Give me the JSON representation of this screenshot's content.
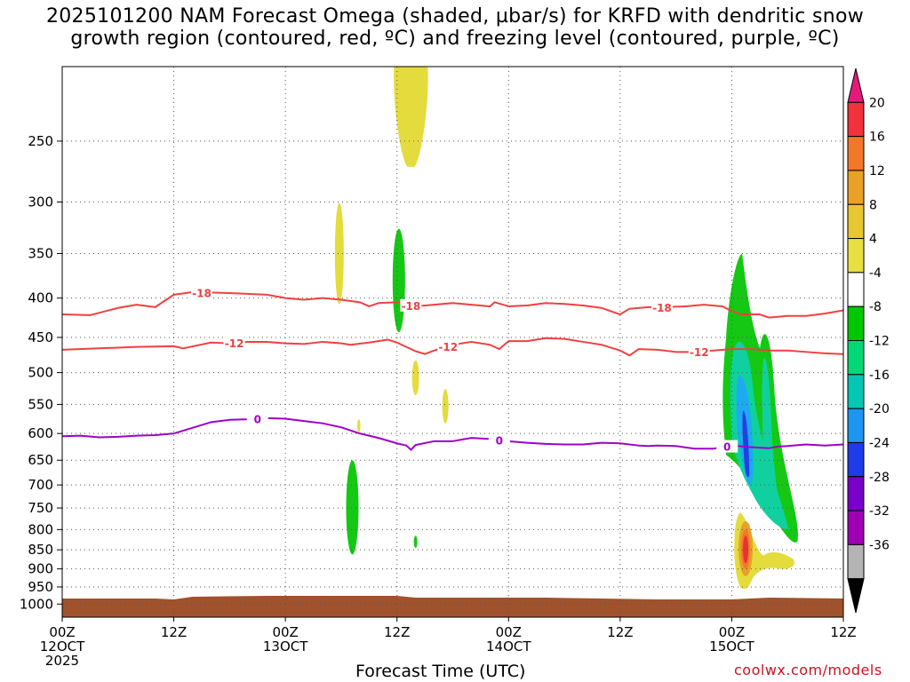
{
  "title": {
    "line1": "2025101200 NAM Forecast Omega (shaded, µbar/s) for KRFD with dendritic snow",
    "line2": "growth region (contoured, red, ºC) and freezing level (contoured, purple, ºC)"
  },
  "credit": "coolwx.com/models",
  "chart_data": {
    "type": "time-height cross section",
    "xlabel": "Forecast Time (UTC)",
    "ylabel": "",
    "y_axis": {
      "scale": "pressure (log)",
      "ticks": [
        250,
        300,
        350,
        400,
        450,
        500,
        550,
        600,
        650,
        700,
        750,
        800,
        850,
        900,
        950,
        1000
      ],
      "range": [
        200,
        1040
      ]
    },
    "x_axis": {
      "range_hours": [
        0,
        84
      ],
      "ticks": [
        {
          "hour": 0,
          "line1": "00Z",
          "line2": "12OCT",
          "line3": "2025"
        },
        {
          "hour": 12,
          "line1": "12Z",
          "line2": "",
          "line3": ""
        },
        {
          "hour": 24,
          "line1": "00Z",
          "line2": "13OCT",
          "line3": ""
        },
        {
          "hour": 36,
          "line1": "12Z",
          "line2": "",
          "line3": ""
        },
        {
          "hour": 48,
          "line1": "00Z",
          "line2": "14OCT",
          "line3": ""
        },
        {
          "hour": 60,
          "line1": "12Z",
          "line2": "",
          "line3": ""
        },
        {
          "hour": 72,
          "line1": "00Z",
          "line2": "15OCT",
          "line3": ""
        },
        {
          "hour": 84,
          "line1": "12Z",
          "line2": "",
          "line3": ""
        }
      ]
    },
    "grid": true,
    "colorbar": {
      "labels": [
        "20",
        "16",
        "12",
        "8",
        "4",
        "-4",
        "-8",
        "-12",
        "-16",
        "-20",
        "-24",
        "-28",
        "-32",
        "-36"
      ],
      "colors": [
        "#e8197a",
        "#f0323c",
        "#f07828",
        "#e8a028",
        "#e8c832",
        "#e8e040",
        "#ffffff",
        "#00c800",
        "#00d878",
        "#00c8b4",
        "#1e96f0",
        "#1e3ce8",
        "#7800c8",
        "#a000b4",
        "#b4b4b4",
        "#000000"
      ]
    },
    "contours": [
      {
        "name": "-18",
        "color": "#f04040",
        "points": [
          [
            0,
            420
          ],
          [
            3,
            421
          ],
          [
            6,
            412
          ],
          [
            8,
            408
          ],
          [
            10,
            411
          ],
          [
            12,
            396
          ],
          [
            14,
            393
          ],
          [
            18,
            394
          ],
          [
            22,
            396
          ],
          [
            24,
            400
          ],
          [
            26,
            402
          ],
          [
            28,
            400
          ],
          [
            30,
            402
          ],
          [
            32,
            405
          ],
          [
            33,
            410
          ],
          [
            34,
            406
          ],
          [
            36,
            405
          ],
          [
            38,
            410
          ],
          [
            40,
            408
          ],
          [
            42,
            406
          ],
          [
            44,
            408
          ],
          [
            46,
            410
          ],
          [
            46.5,
            405
          ],
          [
            48,
            410
          ],
          [
            50,
            409
          ],
          [
            52,
            406
          ],
          [
            54,
            407
          ],
          [
            56,
            409
          ],
          [
            58,
            412
          ],
          [
            60,
            420
          ],
          [
            61,
            413
          ],
          [
            63,
            411
          ],
          [
            65,
            411
          ],
          [
            67,
            410
          ],
          [
            69,
            408
          ],
          [
            71,
            410
          ],
          [
            72,
            416
          ],
          [
            73,
            420
          ],
          [
            75,
            420
          ],
          [
            76,
            424
          ],
          [
            78,
            422
          ],
          [
            80,
            422
          ],
          [
            82,
            419
          ],
          [
            84,
            415
          ]
        ],
        "labels_at_hours": [
          15,
          37.5,
          64.5
        ]
      },
      {
        "name": "-12",
        "color": "#f04040",
        "points": [
          [
            0,
            467
          ],
          [
            4,
            465
          ],
          [
            8,
            463
          ],
          [
            12,
            462
          ],
          [
            13,
            465
          ],
          [
            16,
            457
          ],
          [
            18,
            458
          ],
          [
            20,
            456
          ],
          [
            22,
            456
          ],
          [
            24,
            458
          ],
          [
            26,
            459
          ],
          [
            28,
            456
          ],
          [
            30,
            458
          ],
          [
            31,
            460
          ],
          [
            33,
            457
          ],
          [
            35,
            453
          ],
          [
            36,
            457
          ],
          [
            38,
            469
          ],
          [
            39,
            473
          ],
          [
            40,
            468
          ],
          [
            42,
            460
          ],
          [
            44,
            456
          ],
          [
            46,
            460
          ],
          [
            47,
            466
          ],
          [
            48,
            455
          ],
          [
            50,
            455
          ],
          [
            52,
            451
          ],
          [
            54,
            452
          ],
          [
            56,
            456
          ],
          [
            58,
            460
          ],
          [
            60,
            468
          ],
          [
            61,
            475
          ],
          [
            62,
            466
          ],
          [
            64,
            467
          ],
          [
            66,
            470
          ],
          [
            68,
            470
          ],
          [
            70,
            468
          ],
          [
            72,
            466
          ],
          [
            74,
            466
          ],
          [
            76,
            468
          ],
          [
            78,
            468
          ],
          [
            80,
            470
          ],
          [
            82,
            472
          ],
          [
            84,
            473
          ]
        ],
        "labels_at_hours": [
          18.5,
          41.5,
          68.5
        ]
      },
      {
        "name": "0",
        "color": "#a000c8",
        "points": [
          [
            0,
            605
          ],
          [
            2,
            604
          ],
          [
            4,
            607
          ],
          [
            6,
            606
          ],
          [
            8,
            604
          ],
          [
            10,
            603
          ],
          [
            12,
            600
          ],
          [
            14,
            590
          ],
          [
            16,
            580
          ],
          [
            18,
            576
          ],
          [
            20,
            575
          ],
          [
            22,
            573
          ],
          [
            24,
            574
          ],
          [
            26,
            578
          ],
          [
            28,
            582
          ],
          [
            30,
            589
          ],
          [
            32,
            600
          ],
          [
            34,
            608
          ],
          [
            36,
            618
          ],
          [
            37,
            622
          ],
          [
            37.5,
            630
          ],
          [
            38,
            621
          ],
          [
            40,
            614
          ],
          [
            42,
            614
          ],
          [
            44,
            608
          ],
          [
            46,
            610
          ],
          [
            48,
            614
          ],
          [
            50,
            617
          ],
          [
            52,
            619
          ],
          [
            54,
            620
          ],
          [
            56,
            620
          ],
          [
            58,
            617
          ],
          [
            60,
            618
          ],
          [
            62,
            622
          ],
          [
            63,
            623
          ],
          [
            64,
            622
          ],
          [
            66,
            623
          ],
          [
            68,
            628
          ],
          [
            70,
            628
          ],
          [
            71,
            625
          ],
          [
            72,
            622
          ],
          [
            74,
            625
          ],
          [
            76,
            627
          ],
          [
            77,
            624
          ],
          [
            78,
            623
          ],
          [
            80,
            620
          ],
          [
            82,
            622
          ],
          [
            84,
            620
          ]
        ],
        "labels_at_hours": [
          21,
          47,
          71.5
        ]
      }
    ],
    "shaded_regions": [
      {
        "value_band": "4 to 8",
        "center_hour": 37.5,
        "pressure_range": [
          200,
          270
        ]
      },
      {
        "value_band": "4 to 8",
        "center_hour": 29.8,
        "pressure_range": [
          300,
          400
        ]
      },
      {
        "value_band": "-4 to -8",
        "center_hour": 36.2,
        "pressure_range": [
          325,
          443
        ]
      },
      {
        "value_band": "4 to 8",
        "center_hour": 38.0,
        "pressure_range": [
          482,
          535
        ]
      },
      {
        "value_band": "4 to 8",
        "center_hour": 41.2,
        "pressure_range": [
          525,
          582
        ]
      },
      {
        "value_band": "4 to 8",
        "center_hour": 31.9,
        "pressure_range": [
          575,
          598
        ]
      },
      {
        "value_band": "-4 to -8",
        "center_hour": 31.2,
        "pressure_range": [
          650,
          862
        ]
      },
      {
        "value_band": "-4 to -8",
        "center_hour": 38.0,
        "pressure_range": [
          815,
          845
        ]
      },
      {
        "value_band": "-4 to -20",
        "center_hour": 73.5,
        "pressure_range": [
          350,
          820
        ]
      },
      {
        "value_band": "4 to 16",
        "center_hour": 73.3,
        "pressure_range": [
          760,
          960
        ]
      }
    ],
    "terrain": {
      "surface_pressure_approx": 985,
      "color": "#a0522d"
    }
  }
}
